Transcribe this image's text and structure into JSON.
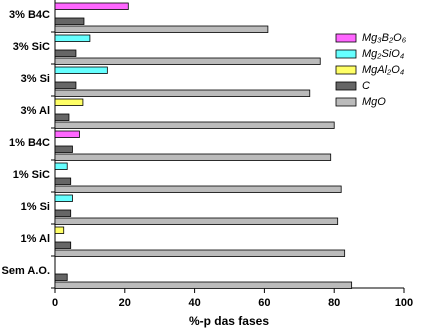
{
  "chart_data": {
    "type": "hbar",
    "x_label": "%-p das fases",
    "categories": [
      "3% B4C",
      "3% SiC",
      "3% Si",
      "3% Al",
      "1% B4C",
      "1% SiC",
      "1% Si",
      "1% Al",
      "Sem A.O."
    ],
    "series": [
      {
        "name": "Mg₃B₂O₆",
        "color": "#ff66ff",
        "values": [
          21,
          null,
          null,
          null,
          7,
          null,
          null,
          null,
          null
        ]
      },
      {
        "name": "Mg₂SiO₄",
        "color": "#66ffff",
        "values": [
          null,
          10,
          15,
          null,
          null,
          3.5,
          5,
          null,
          null
        ]
      },
      {
        "name": "MgAl₂O₄",
        "color": "#ffff66",
        "values": [
          null,
          null,
          null,
          8,
          null,
          null,
          null,
          2.5,
          null
        ]
      },
      {
        "name": "C",
        "color": "#666666",
        "values": [
          8.3,
          6,
          6,
          4,
          5,
          4.5,
          4.5,
          4.5,
          3.5
        ]
      },
      {
        "name": "MgO",
        "color": "#bbbbbb",
        "values": [
          61,
          76,
          73,
          80,
          79,
          82,
          81,
          83,
          85
        ]
      }
    ],
    "xlim": [
      0,
      100
    ],
    "xticks": [
      0,
      20,
      40,
      60,
      80,
      100
    ]
  }
}
